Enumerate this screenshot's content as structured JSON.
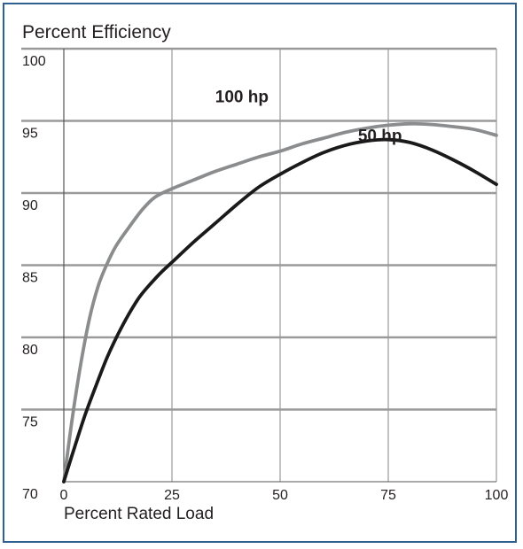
{
  "chart_data": {
    "type": "line",
    "title": "Percent Efficiency",
    "xlabel": "Percent Rated Load",
    "ylabel": "",
    "xlim": [
      0,
      100
    ],
    "ylim": [
      70,
      100
    ],
    "x_ticks": [
      0,
      25,
      50,
      75,
      100
    ],
    "y_ticks": [
      70,
      75,
      80,
      85,
      90,
      95,
      100
    ],
    "grid": true,
    "colors": {
      "100 hp": "#8a8c8e",
      "50 hp": "#1a1a1a",
      "grid": "#9a9a9a",
      "frame": "#2f5f8f"
    },
    "series": [
      {
        "name": "100 hp",
        "x": [
          0,
          2,
          4,
          6,
          8,
          10,
          12,
          15,
          18,
          21,
          25,
          30,
          35,
          40,
          45,
          50,
          55,
          60,
          65,
          70,
          75,
          80,
          85,
          90,
          95,
          100
        ],
        "y": [
          70,
          74.5,
          78.3,
          81.4,
          83.6,
          85.1,
          86.3,
          87.6,
          88.8,
          89.7,
          90.3,
          90.9,
          91.5,
          92.0,
          92.5,
          92.9,
          93.4,
          93.8,
          94.2,
          94.5,
          94.7,
          94.8,
          94.75,
          94.6,
          94.4,
          94.0
        ]
      },
      {
        "name": "50 hp",
        "x": [
          0,
          2.5,
          5,
          7.5,
          10,
          12.5,
          15,
          17.5,
          20,
          22.5,
          25,
          30,
          35,
          40,
          45,
          50,
          55,
          60,
          65,
          70,
          75,
          80,
          85,
          90,
          95,
          100
        ],
        "y": [
          70,
          72.4,
          74.7,
          76.7,
          78.6,
          80.2,
          81.6,
          82.8,
          83.7,
          84.5,
          85.2,
          86.6,
          87.9,
          89.2,
          90.4,
          91.3,
          92.1,
          92.8,
          93.3,
          93.6,
          93.7,
          93.5,
          93.0,
          92.3,
          91.5,
          90.6
        ]
      }
    ],
    "series_labels": [
      {
        "text": "100 hp",
        "x": 35,
        "y": 96.3
      },
      {
        "text": "50 hp",
        "x": 68,
        "y": 93.6
      }
    ]
  }
}
